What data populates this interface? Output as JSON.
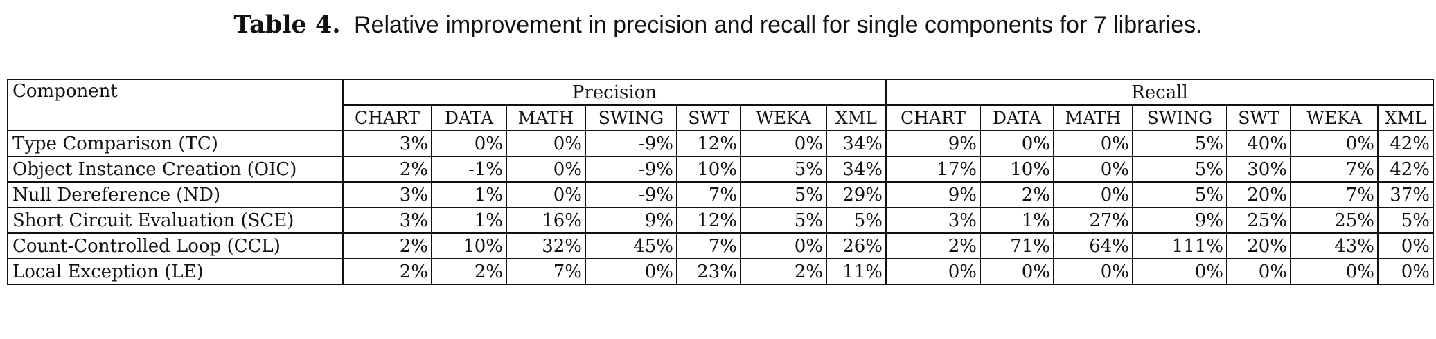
{
  "caption": {
    "label": "Table 4.",
    "text": "Relative improvement in precision and recall for single components for 7 libraries."
  },
  "table": {
    "component_header": "Component",
    "groups": [
      "Precision",
      "Recall"
    ],
    "libraries": [
      "CHART",
      "DATA",
      "MATH",
      "SWING",
      "SWT",
      "WEKA",
      "XML"
    ],
    "rows": [
      {
        "component": "Type Comparison (TC)",
        "precision": [
          "3%",
          "0%",
          "0%",
          "-9%",
          "12%",
          "0%",
          "34%"
        ],
        "recall": [
          "9%",
          "0%",
          "0%",
          "5%",
          "40%",
          "0%",
          "42%"
        ]
      },
      {
        "component": "Object Instance Creation (OIC)",
        "precision": [
          "2%",
          "-1%",
          "0%",
          "-9%",
          "10%",
          "5%",
          "34%"
        ],
        "recall": [
          "17%",
          "10%",
          "0%",
          "5%",
          "30%",
          "7%",
          "42%"
        ]
      },
      {
        "component": "Null Dereference (ND)",
        "precision": [
          "3%",
          "1%",
          "0%",
          "-9%",
          "7%",
          "5%",
          "29%"
        ],
        "recall": [
          "9%",
          "2%",
          "0%",
          "5%",
          "20%",
          "7%",
          "37%"
        ]
      },
      {
        "component": "Short Circuit Evaluation (SCE)",
        "precision": [
          "3%",
          "1%",
          "16%",
          "9%",
          "12%",
          "5%",
          "5%"
        ],
        "recall": [
          "3%",
          "1%",
          "27%",
          "9%",
          "25%",
          "25%",
          "5%"
        ]
      },
      {
        "component": "Count-Controlled Loop (CCL)",
        "precision": [
          "2%",
          "10%",
          "32%",
          "45%",
          "7%",
          "0%",
          "26%"
        ],
        "recall": [
          "2%",
          "71%",
          "64%",
          "111%",
          "20%",
          "43%",
          "0%"
        ]
      },
      {
        "component": "Local Exception (LE)",
        "precision": [
          "2%",
          "2%",
          "7%",
          "0%",
          "23%",
          "2%",
          "11%"
        ],
        "recall": [
          "0%",
          "0%",
          "0%",
          "0%",
          "0%",
          "0%",
          "0%"
        ]
      }
    ]
  }
}
